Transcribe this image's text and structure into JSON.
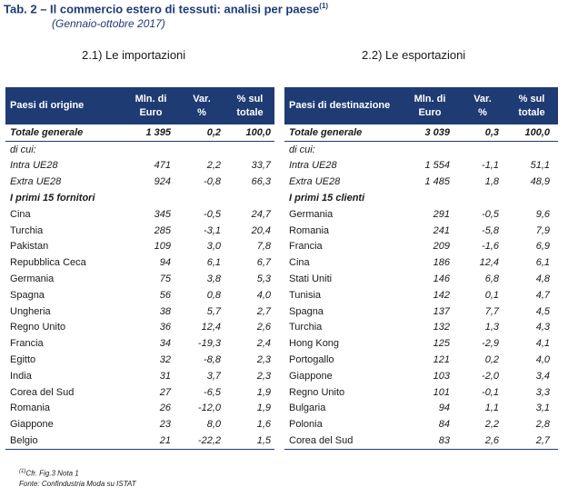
{
  "title": "Tab. 2 – Il commercio estero di tessuti: analisi per paese",
  "title_sup": "(1)",
  "subtitle": "(Gennaio-ottobre 2017)",
  "imports": {
    "section_title": "2.1) Le importazioni",
    "headers": {
      "country": "Paesi di origine",
      "value_l1": "Mln. di",
      "value_l2": "Euro",
      "var_l1": "Var.",
      "var_l2": "%",
      "share_l1": "% sul",
      "share_l2": "totale"
    },
    "total": {
      "label": "Totale generale",
      "value": "1 395",
      "var": "0,2",
      "share": "100,0"
    },
    "dicui": "di cui:",
    "intra": {
      "label": "Intra UE28",
      "value": "471",
      "var": "2,2",
      "share": "33,7"
    },
    "extra": {
      "label": "Extra UE28",
      "value": "924",
      "var": "-0,8",
      "share": "66,3"
    },
    "top_label": "I primi 15 fornitori",
    "rows": [
      {
        "name": "Cina",
        "value": "345",
        "var": "-0,5",
        "share": "24,7"
      },
      {
        "name": "Turchia",
        "value": "285",
        "var": "-3,1",
        "share": "20,4"
      },
      {
        "name": "Pakistan",
        "value": "109",
        "var": "3,0",
        "share": "7,8"
      },
      {
        "name": "Repubblica Ceca",
        "value": "94",
        "var": "6,1",
        "share": "6,7"
      },
      {
        "name": "Germania",
        "value": "75",
        "var": "3,8",
        "share": "5,3"
      },
      {
        "name": "Spagna",
        "value": "56",
        "var": "0,8",
        "share": "4,0"
      },
      {
        "name": "Ungheria",
        "value": "38",
        "var": "5,7",
        "share": "2,7"
      },
      {
        "name": "Regno Unito",
        "value": "36",
        "var": "12,4",
        "share": "2,6"
      },
      {
        "name": "Francia",
        "value": "34",
        "var": "-19,3",
        "share": "2,4"
      },
      {
        "name": "Egitto",
        "value": "32",
        "var": "-8,8",
        "share": "2,3"
      },
      {
        "name": "India",
        "value": "31",
        "var": "3,7",
        "share": "2,3"
      },
      {
        "name": "Corea del Sud",
        "value": "27",
        "var": "-6,5",
        "share": "1,9"
      },
      {
        "name": "Romania",
        "value": "26",
        "var": "-12,0",
        "share": "1,9"
      },
      {
        "name": "Giappone",
        "value": "23",
        "var": "8,0",
        "share": "1,6"
      },
      {
        "name": "Belgio",
        "value": "21",
        "var": "-22,2",
        "share": "1,5"
      }
    ]
  },
  "exports": {
    "section_title": "2.2) Le esportazioni",
    "headers": {
      "country": "Paesi di destinazione",
      "value_l1": "Mln. di",
      "value_l2": "Euro",
      "var_l1": "Var.",
      "var_l2": "%",
      "share_l1": "% sul",
      "share_l2": "totale"
    },
    "total": {
      "label": "Totale generale",
      "value": "3 039",
      "var": "0,3",
      "share": "100,0"
    },
    "dicui": "di cui:",
    "intra": {
      "label": "Intra UE28",
      "value": "1 554",
      "var": "-1,1",
      "share": "51,1"
    },
    "extra": {
      "label": "Extra UE28",
      "value": "1 485",
      "var": "1,8",
      "share": "48,9"
    },
    "top_label": "I primi 15 clienti",
    "rows": [
      {
        "name": "Germania",
        "value": "291",
        "var": "-0,5",
        "share": "9,6"
      },
      {
        "name": "Romania",
        "value": "241",
        "var": "-5,8",
        "share": "7,9"
      },
      {
        "name": "Francia",
        "value": "209",
        "var": "-1,6",
        "share": "6,9"
      },
      {
        "name": "Cina",
        "value": "186",
        "var": "12,4",
        "share": "6,1"
      },
      {
        "name": "Stati Uniti",
        "value": "146",
        "var": "6,8",
        "share": "4,8"
      },
      {
        "name": "Tunisia",
        "value": "142",
        "var": "0,1",
        "share": "4,7"
      },
      {
        "name": "Spagna",
        "value": "137",
        "var": "7,7",
        "share": "4,5"
      },
      {
        "name": "Turchia",
        "value": "132",
        "var": "1,3",
        "share": "4,3"
      },
      {
        "name": "Hong Kong",
        "value": "125",
        "var": "-2,9",
        "share": "4,1"
      },
      {
        "name": "Portogallo",
        "value": "121",
        "var": "0,2",
        "share": "4,0"
      },
      {
        "name": "Giappone",
        "value": "103",
        "var": "-2,0",
        "share": "3,4"
      },
      {
        "name": "Regno Unito",
        "value": "101",
        "var": "-0,1",
        "share": "3,3"
      },
      {
        "name": "Bulgaria",
        "value": "94",
        "var": "1,1",
        "share": "3,1"
      },
      {
        "name": "Polonia",
        "value": "84",
        "var": "2,2",
        "share": "2,8"
      },
      {
        "name": "Corea del Sud",
        "value": "83",
        "var": "2,6",
        "share": "2,7"
      }
    ]
  },
  "notes": {
    "note1_sup": "(1)",
    "note1": "Cfr. Fig.3 Nota 1",
    "note2": "Fonte: Confindustria Moda  su ISTAT"
  },
  "colors": {
    "header_bg": "#1f3b73",
    "title": "#1f3b73"
  }
}
